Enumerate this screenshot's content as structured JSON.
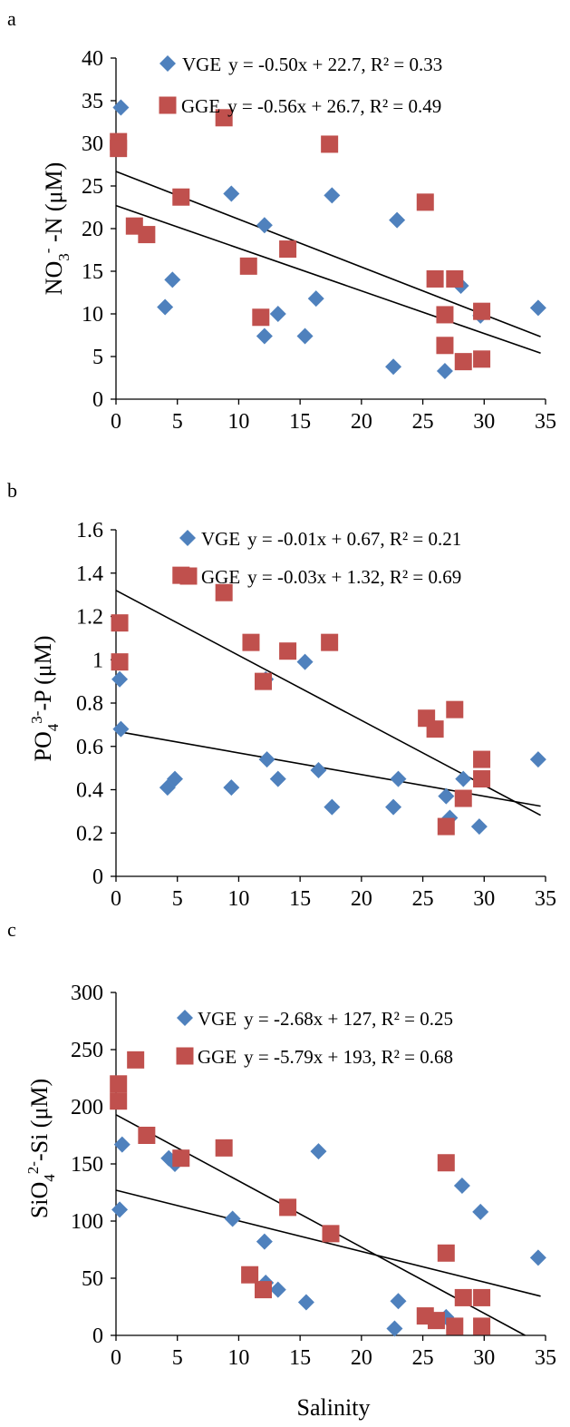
{
  "colors": {
    "vge": "#4F81BD",
    "gge": "#C0504D",
    "axis": "#000000",
    "trend": "#000000"
  },
  "figure": {
    "xlabel": "Salinity"
  },
  "chart_data": [
    {
      "type": "scatter",
      "panel": "a",
      "ylabel": "NO3- -N (μM)",
      "xlim": [
        0,
        35
      ],
      "ylim": [
        0,
        40
      ],
      "xticks": [
        0,
        5,
        10,
        15,
        20,
        25,
        30,
        35
      ],
      "yticks": [
        0,
        5,
        10,
        15,
        20,
        25,
        30,
        35,
        40
      ],
      "legend_position": "top",
      "series": [
        {
          "name": "VGE",
          "equation": "y = -0.50x + 22.7, R² = 0.33",
          "marker": "diamond",
          "color": "#4F81BD",
          "slope": -0.5,
          "intercept": 22.7,
          "points": [
            [
              0.4,
              34.2
            ],
            [
              4.0,
              10.8
            ],
            [
              4.6,
              14.0
            ],
            [
              9.4,
              24.1
            ],
            [
              12.1,
              7.4
            ],
            [
              12.1,
              20.4
            ],
            [
              13.2,
              10.0
            ],
            [
              15.4,
              7.4
            ],
            [
              16.3,
              11.8
            ],
            [
              17.6,
              23.9
            ],
            [
              22.6,
              3.8
            ],
            [
              22.9,
              21.0
            ],
            [
              26.8,
              3.3
            ],
            [
              28.1,
              13.3
            ],
            [
              29.7,
              9.8
            ],
            [
              34.4,
              10.7
            ]
          ]
        },
        {
          "name": "GGE",
          "equation": "y = -0.56x + 26.7, R² = 0.49",
          "marker": "square",
          "color": "#C0504D",
          "slope": -0.56,
          "intercept": 26.7,
          "points": [
            [
              0.2,
              30.2
            ],
            [
              0.2,
              29.4
            ],
            [
              1.5,
              20.3
            ],
            [
              2.5,
              19.3
            ],
            [
              5.3,
              23.7
            ],
            [
              8.8,
              33.0
            ],
            [
              10.8,
              15.6
            ],
            [
              11.8,
              9.6
            ],
            [
              14.0,
              17.6
            ],
            [
              17.4,
              29.9
            ],
            [
              25.2,
              23.1
            ],
            [
              26.0,
              14.1
            ],
            [
              26.8,
              9.9
            ],
            [
              26.8,
              6.3
            ],
            [
              27.6,
              14.1
            ],
            [
              28.3,
              4.4
            ],
            [
              29.8,
              10.3
            ],
            [
              29.8,
              4.7
            ]
          ]
        }
      ]
    },
    {
      "type": "scatter",
      "panel": "b",
      "ylabel": "PO43--P (μM)",
      "xlim": [
        0,
        35
      ],
      "ylim": [
        0,
        1.6
      ],
      "xticks": [
        0,
        5,
        10,
        15,
        20,
        25,
        30,
        35
      ],
      "yticks": [
        "0",
        "0.2",
        "0.4",
        "0.6",
        "0.8",
        "1",
        "1.2",
        "1.4",
        "1.6"
      ],
      "legend_position": "top",
      "series": [
        {
          "name": "VGE",
          "equation": "y = -0.01x + 0.67, R² = 0.21",
          "marker": "diamond",
          "color": "#4F81BD",
          "slope": -0.01,
          "intercept": 0.67,
          "points": [
            [
              0.3,
              0.91
            ],
            [
              0.4,
              0.68
            ],
            [
              4.2,
              0.41
            ],
            [
              4.8,
              0.45
            ],
            [
              9.4,
              0.41
            ],
            [
              12.2,
              0.91
            ],
            [
              12.3,
              0.54
            ],
            [
              13.2,
              0.45
            ],
            [
              15.4,
              0.99
            ],
            [
              16.5,
              0.49
            ],
            [
              17.6,
              0.32
            ],
            [
              22.6,
              0.32
            ],
            [
              23.0,
              0.45
            ],
            [
              26.9,
              0.37
            ],
            [
              27.2,
              0.27
            ],
            [
              28.3,
              0.45
            ],
            [
              29.6,
              0.23
            ],
            [
              34.4,
              0.54
            ]
          ]
        },
        {
          "name": "GGE",
          "equation": "y = -0.03x + 1.32, R² = 0.69",
          "marker": "square",
          "color": "#C0504D",
          "slope": -0.03,
          "intercept": 1.32,
          "points": [
            [
              0.3,
              1.17
            ],
            [
              0.3,
              0.99
            ],
            [
              5.3,
              1.39
            ],
            [
              8.8,
              1.31
            ],
            [
              11.0,
              1.08
            ],
            [
              12.0,
              0.9
            ],
            [
              14.0,
              1.04
            ],
            [
              17.4,
              1.08
            ],
            [
              25.3,
              0.73
            ],
            [
              26.0,
              0.68
            ],
            [
              26.9,
              0.23
            ],
            [
              27.6,
              0.77
            ],
            [
              28.3,
              0.36
            ],
            [
              29.8,
              0.54
            ],
            [
              29.8,
              0.45
            ]
          ]
        }
      ]
    },
    {
      "type": "scatter",
      "panel": "c",
      "ylabel": "SiO42--Si (μM)",
      "xlabel": "Salinity",
      "xlim": [
        0,
        35
      ],
      "ylim": [
        0,
        300
      ],
      "xticks": [
        0,
        5,
        10,
        15,
        20,
        25,
        30,
        35
      ],
      "yticks": [
        0,
        50,
        100,
        150,
        200,
        250,
        300
      ],
      "legend_position": "top",
      "series": [
        {
          "name": "VGE",
          "equation": "y = -2.68x + 127, R² = 0.25",
          "marker": "diamond",
          "color": "#4F81BD",
          "slope": -2.68,
          "intercept": 127,
          "points": [
            [
              0.3,
              110
            ],
            [
              0.5,
              167
            ],
            [
              4.3,
              155
            ],
            [
              4.8,
              150
            ],
            [
              9.5,
              102
            ],
            [
              12.1,
              82
            ],
            [
              12.2,
              46
            ],
            [
              13.2,
              40
            ],
            [
              15.5,
              29
            ],
            [
              16.5,
              161
            ],
            [
              22.7,
              6
            ],
            [
              23.0,
              30
            ],
            [
              26.9,
              16
            ],
            [
              28.2,
              131
            ],
            [
              29.7,
              108
            ],
            [
              34.4,
              68
            ]
          ]
        },
        {
          "name": "GGE",
          "equation": "y = -5.79x + 193, R² = 0.68",
          "marker": "square",
          "color": "#C0504D",
          "slope": -5.79,
          "intercept": 193,
          "points": [
            [
              0.2,
              220
            ],
            [
              0.2,
              205
            ],
            [
              1.6,
              241
            ],
            [
              2.5,
              175
            ],
            [
              5.3,
              155
            ],
            [
              8.8,
              164
            ],
            [
              10.9,
              53
            ],
            [
              12.0,
              40
            ],
            [
              14.0,
              112
            ],
            [
              17.5,
              89
            ],
            [
              25.2,
              17
            ],
            [
              26.1,
              13
            ],
            [
              26.9,
              151
            ],
            [
              26.9,
              72
            ],
            [
              27.6,
              8
            ],
            [
              28.3,
              33
            ],
            [
              29.8,
              33
            ],
            [
              29.8,
              8
            ]
          ]
        }
      ]
    }
  ]
}
